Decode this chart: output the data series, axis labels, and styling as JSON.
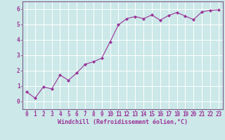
{
  "x": [
    0,
    1,
    2,
    3,
    4,
    5,
    6,
    7,
    8,
    9,
    10,
    11,
    12,
    13,
    14,
    15,
    16,
    17,
    18,
    19,
    20,
    21,
    22,
    23
  ],
  "y": [
    0.62,
    0.22,
    0.95,
    0.82,
    1.72,
    1.38,
    1.85,
    2.42,
    2.58,
    2.82,
    3.88,
    4.98,
    5.38,
    5.52,
    5.38,
    5.62,
    5.28,
    5.58,
    5.78,
    5.55,
    5.32,
    5.82,
    5.92,
    5.95
  ],
  "line_color": "#993399",
  "marker": "D",
  "marker_size": 2.5,
  "bg_color": "#cce8e8",
  "grid_color": "#ffffff",
  "xlabel": "Windchill (Refroidissement éolien,°C)",
  "xlim": [
    -0.5,
    23.5
  ],
  "ylim": [
    -0.5,
    6.5
  ],
  "yticks": [
    0,
    1,
    2,
    3,
    4,
    5,
    6
  ],
  "xticks": [
    0,
    1,
    2,
    3,
    4,
    5,
    6,
    7,
    8,
    9,
    10,
    11,
    12,
    13,
    14,
    15,
    16,
    17,
    18,
    19,
    20,
    21,
    22,
    23
  ],
  "xlabel_fontsize": 6.0,
  "tick_fontsize": 5.5,
  "tick_color": "#993399",
  "axis_color": "#993399",
  "label_color": "#993399",
  "spine_color": "#7a5c8a"
}
